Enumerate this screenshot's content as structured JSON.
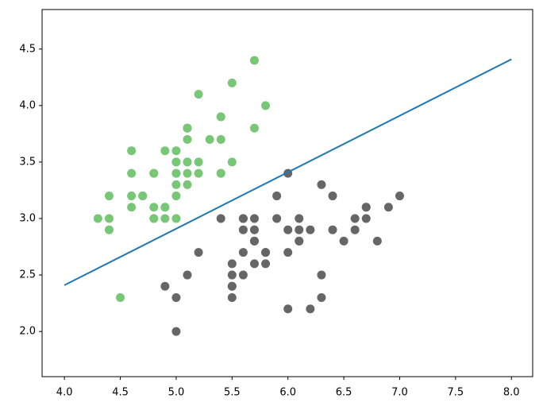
{
  "chart_data": {
    "type": "scatter",
    "xlim": [
      3.8,
      8.19
    ],
    "ylim": [
      1.6,
      4.85
    ],
    "xticks": [
      {
        "value": 4,
        "label": "4.0"
      },
      4.5,
      {
        "value": 5,
        "label": "5.0"
      },
      5.5,
      {
        "value": 6,
        "label": "6.0"
      },
      6.5,
      {
        "value": 7,
        "label": "7.0"
      },
      7.5,
      {
        "value": 8,
        "label": "8.0"
      }
    ],
    "yticks": [
      {
        "value": 2,
        "label": "2.0"
      },
      2.5,
      {
        "value": 3,
        "label": "3.0"
      },
      3.5,
      {
        "value": 4,
        "label": "4.0"
      },
      4.5
    ],
    "series": [
      {
        "type": "scatter",
        "color": "#77c777",
        "x": [
          5.1,
          4.9,
          4.7,
          4.6,
          5.0,
          5.4,
          4.6,
          5.0,
          4.4,
          4.9,
          5.4,
          4.8,
          4.8,
          4.3,
          5.8,
          5.7,
          5.4,
          5.1,
          5.7,
          5.1,
          5.4,
          5.1,
          4.6,
          5.1,
          4.8,
          5.0,
          5.0,
          5.2,
          5.2,
          4.7,
          4.8,
          5.4,
          5.2,
          5.5,
          4.9,
          5.0,
          5.5,
          4.9,
          4.4,
          5.1,
          5.0,
          4.5,
          4.4,
          5.0,
          5.1,
          4.8,
          5.1,
          4.6,
          5.3,
          5.0
        ],
        "values": [
          3.5,
          3.0,
          3.2,
          3.1,
          3.6,
          3.9,
          3.4,
          3.4,
          2.9,
          3.1,
          3.7,
          3.4,
          3.0,
          3.0,
          4.0,
          4.4,
          3.9,
          3.5,
          3.8,
          3.8,
          3.4,
          3.7,
          3.6,
          3.3,
          3.4,
          3.0,
          3.4,
          3.5,
          3.4,
          3.2,
          3.1,
          3.4,
          4.1,
          4.2,
          3.1,
          3.2,
          3.5,
          3.6,
          3.0,
          3.4,
          3.5,
          2.3,
          3.2,
          3.5,
          3.8,
          3.0,
          3.8,
          3.2,
          3.7,
          3.3
        ]
      },
      {
        "type": "scatter",
        "color": "#666666",
        "x": [
          7.0,
          6.4,
          6.9,
          5.5,
          6.5,
          5.7,
          6.3,
          4.9,
          6.6,
          5.2,
          5.0,
          5.9,
          6.0,
          6.1,
          5.6,
          6.7,
          5.6,
          5.8,
          6.2,
          5.6,
          5.9,
          6.1,
          6.3,
          6.1,
          6.4,
          6.6,
          6.8,
          6.7,
          6.0,
          5.7,
          5.5,
          5.5,
          5.8,
          6.0,
          5.4,
          6.0,
          6.7,
          6.3,
          5.6,
          5.5,
          5.5,
          6.1,
          5.8,
          5.0,
          5.6,
          5.7,
          5.7,
          6.2,
          5.1,
          5.7
        ],
        "values": [
          3.2,
          3.2,
          3.1,
          2.3,
          2.8,
          2.8,
          3.3,
          2.4,
          2.9,
          2.7,
          2.0,
          3.0,
          2.2,
          2.9,
          2.9,
          3.1,
          3.0,
          2.7,
          2.2,
          2.5,
          3.2,
          2.8,
          2.5,
          2.8,
          2.9,
          3.0,
          2.8,
          3.0,
          2.9,
          2.6,
          2.4,
          2.4,
          2.7,
          2.7,
          3.0,
          3.4,
          3.1,
          2.3,
          3.0,
          2.5,
          2.6,
          3.0,
          2.6,
          2.3,
          2.7,
          3.0,
          2.9,
          2.9,
          2.5,
          2.8
        ]
      },
      {
        "type": "line",
        "color": "#1f77b4",
        "x": [
          4.0,
          8.0
        ],
        "values": [
          2.41,
          4.41
        ]
      }
    ]
  }
}
